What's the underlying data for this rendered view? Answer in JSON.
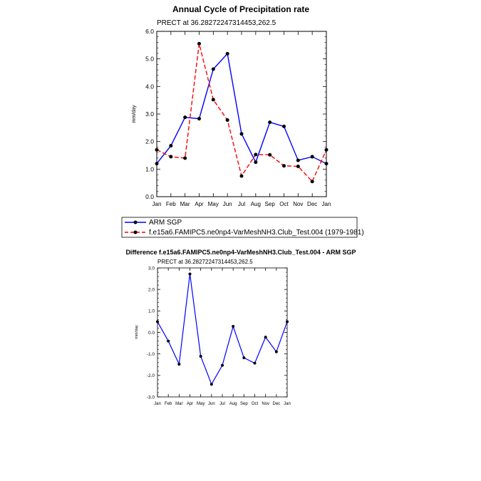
{
  "chart_data": [
    {
      "type": "line",
      "title": "Annual Cycle of Precipitation rate",
      "subtitle": "PRECT at 36.28272247314453,262.5",
      "ylabel": "mm/day",
      "xlabel": "",
      "categories": [
        "Jan",
        "Feb",
        "Mar",
        "Apr",
        "May",
        "Jun",
        "Jul",
        "Aug",
        "Sep",
        "Oct",
        "Nov",
        "Dec",
        "Jan"
      ],
      "ylim": [
        0,
        6
      ],
      "yticks": [
        0,
        1,
        2,
        3,
        4,
        5,
        6
      ],
      "ytick_labels": [
        "0.0",
        "1.0",
        "2.0",
        "3.0",
        "4.0",
        "5.0",
        "6.0"
      ],
      "series": [
        {
          "name": "ARM SGP",
          "color": "#0000ff",
          "dash": "solid",
          "values": [
            1.2,
            1.85,
            2.88,
            2.83,
            4.63,
            5.19,
            2.28,
            1.25,
            2.7,
            2.55,
            1.32,
            1.45,
            1.2
          ]
        },
        {
          "name": "f.e15a6.FAMIPC5.ne0np4-VarMeshNH3.Club_Test.004 (1979-1981)",
          "color": "#ff0000",
          "dash": "dashed",
          "values": [
            1.7,
            1.45,
            1.4,
            5.55,
            3.52,
            2.78,
            0.75,
            1.53,
            1.52,
            1.12,
            1.1,
            0.55,
            1.7
          ]
        }
      ],
      "legend": "below"
    },
    {
      "type": "line",
      "title": "Difference f.e15a6.FAMIPC5.ne0np4-VarMeshNH3.Club_Test.004 - ARM SGP",
      "subtitle": "PRECT at 36.28272247314453,262.5",
      "ylabel": "mm/day",
      "xlabel": "",
      "categories": [
        "Jan",
        "Feb",
        "Mar",
        "Apr",
        "May",
        "Jun",
        "Jul",
        "Aug",
        "Sep",
        "Oct",
        "Nov",
        "Dec",
        "Jan"
      ],
      "ylim": [
        -3,
        3
      ],
      "yticks": [
        -3,
        -2,
        -1,
        0,
        1,
        2,
        3
      ],
      "ytick_labels": [
        "-3.0",
        "-2.0",
        "-1.0",
        "0.0",
        "1.0",
        "2.0",
        "3.0"
      ],
      "series": [
        {
          "name": "Difference",
          "color": "#0000ff",
          "dash": "solid",
          "values": [
            0.5,
            -0.4,
            -1.48,
            2.72,
            -1.11,
            -2.41,
            -1.53,
            0.28,
            -1.18,
            -1.43,
            -0.22,
            -0.9,
            0.5
          ]
        }
      ]
    }
  ]
}
